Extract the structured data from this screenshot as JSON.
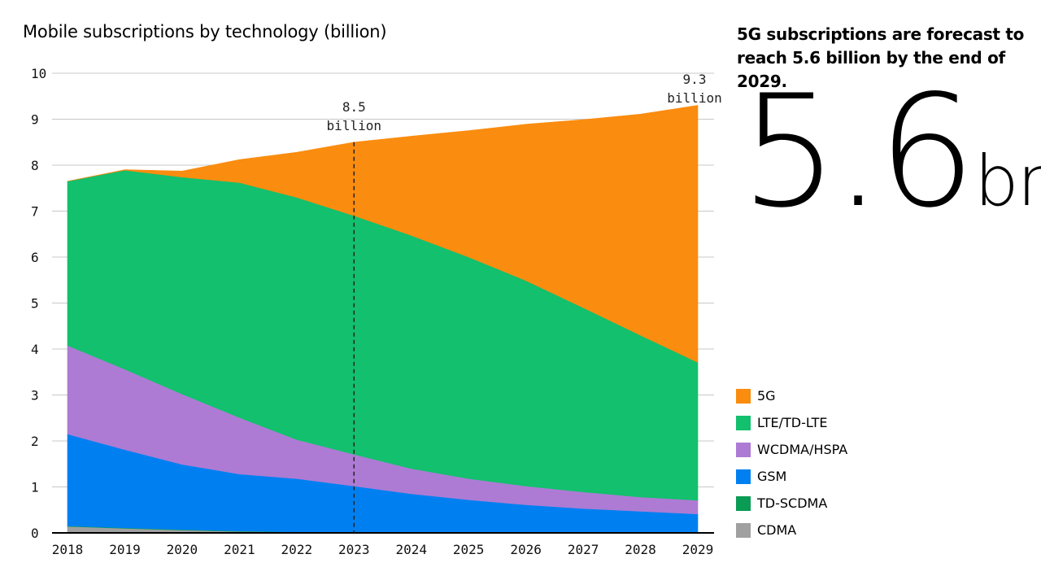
{
  "chart_data": {
    "type": "area",
    "stacked": true,
    "title": "Mobile subscriptions by technology (billion)",
    "x": [
      "2018",
      "2019",
      "2020",
      "2021",
      "2022",
      "2023",
      "2024",
      "2025",
      "2026",
      "2027",
      "2028",
      "2029"
    ],
    "ylim": [
      0,
      10
    ],
    "yticks": [
      "0",
      "1",
      "2",
      "3",
      "4",
      "5",
      "6",
      "7",
      "8",
      "9",
      "10"
    ],
    "grid": true,
    "legend_position": "right",
    "series": [
      {
        "name": "CDMA",
        "color": "#a0a0a0",
        "values": [
          0.14,
          0.1,
          0.06,
          0.03,
          0.02,
          0.01,
          0.01,
          0.01,
          0.01,
          0.01,
          0.01,
          0.01
        ]
      },
      {
        "name": "TD-SCDMA",
        "color": "#0a9b54",
        "values": [
          0.01,
          0.01,
          0.01,
          0.01,
          0.0,
          0.0,
          0.0,
          0.0,
          0.0,
          0.0,
          0.0,
          0.0
        ]
      },
      {
        "name": "GSM",
        "color": "#0080f0",
        "values": [
          2.0,
          1.7,
          1.42,
          1.24,
          1.16,
          1.01,
          0.84,
          0.71,
          0.6,
          0.52,
          0.46,
          0.4
        ]
      },
      {
        "name": "WCDMA/HSPA",
        "color": "#ad7bd4",
        "values": [
          1.93,
          1.75,
          1.53,
          1.23,
          0.85,
          0.69,
          0.55,
          0.46,
          0.41,
          0.36,
          0.31,
          0.3
        ]
      },
      {
        "name": "LTE/TD-LTE",
        "color": "#12c06d",
        "values": [
          3.57,
          4.33,
          4.72,
          5.11,
          5.27,
          5.19,
          5.07,
          4.82,
          4.47,
          4.01,
          3.52,
          3.0
        ]
      },
      {
        "name": "5G",
        "color": "#fa8c0f",
        "values": [
          0.0,
          0.01,
          0.13,
          0.5,
          0.98,
          1.6,
          2.16,
          2.75,
          3.4,
          4.09,
          4.81,
          5.59
        ]
      }
    ],
    "annotations": [
      {
        "x": "2023",
        "line1": "8.5",
        "line2": "billion"
      },
      {
        "x": "2029",
        "line1": "9.3",
        "line2": "billion"
      }
    ],
    "legend_order": [
      "5G",
      "LTE/TD-LTE",
      "WCDMA/HSPA",
      "GSM",
      "TD-SCDMA",
      "CDMA"
    ]
  },
  "side_panel": {
    "heading": "5G subscriptions are forecast to reach 5.6 billion by the end of 2029.",
    "big_number": "5.6",
    "big_unit": "bn"
  }
}
